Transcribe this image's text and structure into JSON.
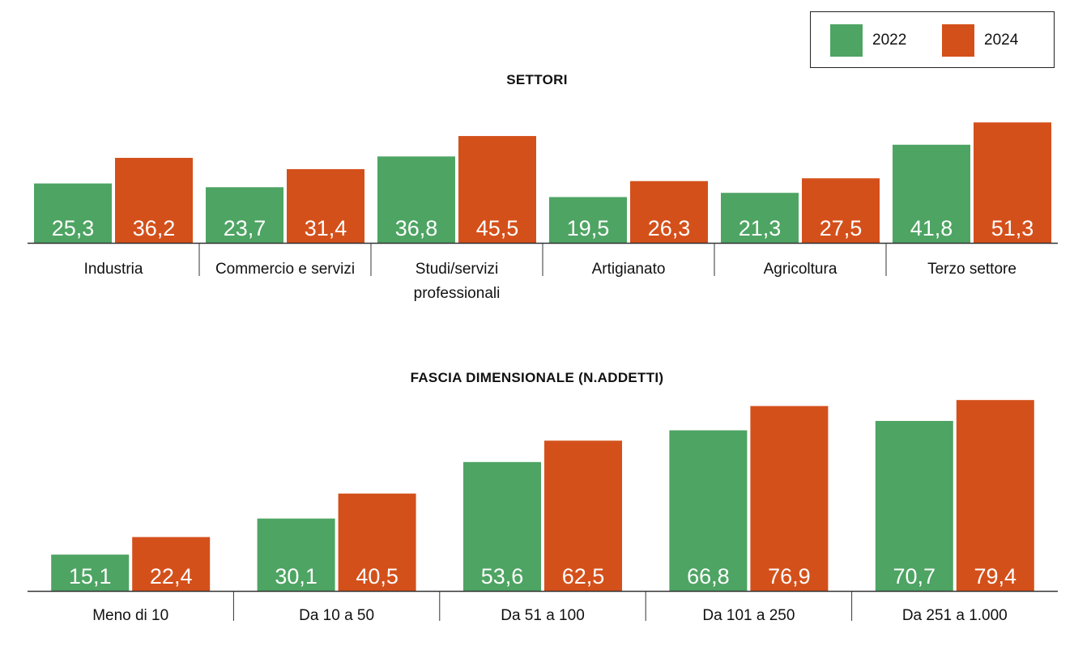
{
  "colors": {
    "series_2022": "#4ea463",
    "series_2024": "#d4501b",
    "axis": "#333333",
    "value_label": "#ffffff"
  },
  "legend": [
    {
      "label": "2022",
      "color": "#4ea463"
    },
    {
      "label": "2024",
      "color": "#d4501b"
    }
  ],
  "chart_data": [
    {
      "type": "bar",
      "title": "SETTORI",
      "categories": [
        "Industria",
        "Commercio e servizi",
        "Studi/servizi professionali",
        "Artigianato",
        "Agricoltura",
        "Terzo settore"
      ],
      "series": [
        {
          "name": "2022",
          "values": [
            25.3,
            23.7,
            36.8,
            19.5,
            21.3,
            41.8
          ]
        },
        {
          "name": "2024",
          "values": [
            36.2,
            31.4,
            45.5,
            26.3,
            27.5,
            51.3
          ]
        }
      ],
      "value_labels": {
        "2022": [
          "25,3",
          "23,7",
          "36,8",
          "19,5",
          "21,3",
          "41,8"
        ],
        "2024": [
          "36,2",
          "31,4",
          "45,5",
          "26,3",
          "27,5",
          "51,3"
        ]
      },
      "ylim": [
        0,
        55
      ],
      "grid": false,
      "legend_position": "top-right"
    },
    {
      "type": "bar",
      "title": "FASCIA DIMENSIONALE (N.ADDETTI)",
      "categories": [
        "Meno di 10",
        "Da 10 a 50",
        "Da 51 a 100",
        "Da 101 a 250",
        "Da 251 a 1.000"
      ],
      "series": [
        {
          "name": "2022",
          "values": [
            15.1,
            30.1,
            53.6,
            66.8,
            70.7
          ]
        },
        {
          "name": "2024",
          "values": [
            22.4,
            40.5,
            62.5,
            76.9,
            79.4
          ]
        }
      ],
      "value_labels": {
        "2022": [
          "15,1",
          "30,1",
          "53,6",
          "66,8",
          "70,7"
        ],
        "2024": [
          "22,4",
          "40,5",
          "62,5",
          "76,9",
          "79,4"
        ]
      },
      "ylim": [
        0,
        85
      ],
      "grid": false
    }
  ]
}
